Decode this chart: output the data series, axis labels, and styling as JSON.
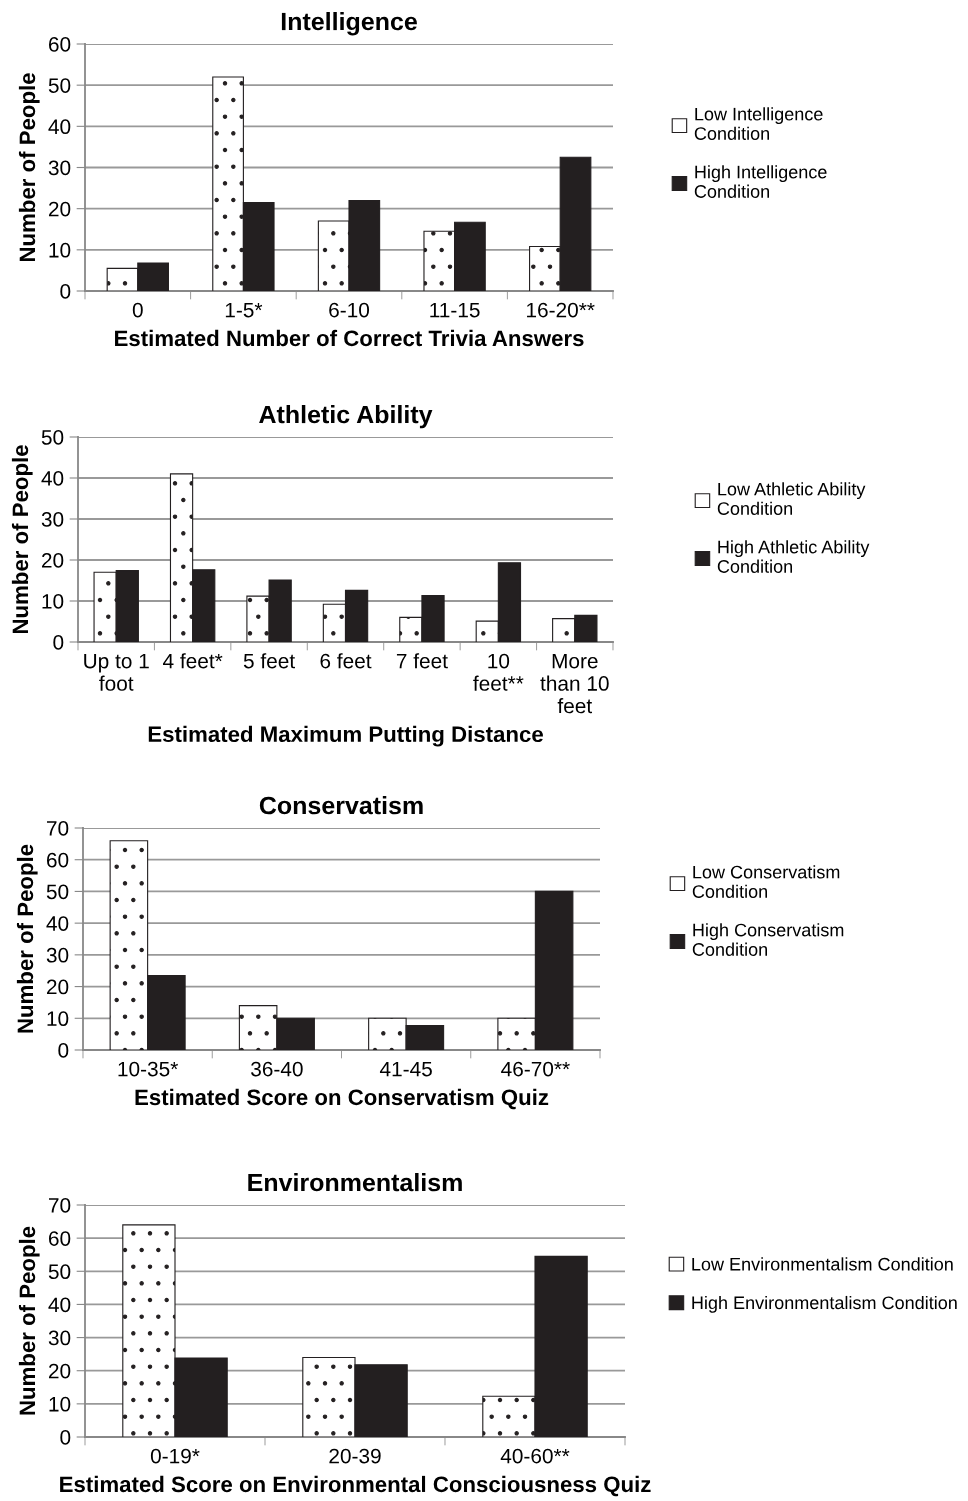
{
  "chart_data": [
    {
      "type": "bar",
      "title": "Intelligence",
      "xlabel": "Estimated Number of Correct Trivia Answers",
      "ylabel": "Number of People",
      "categories": [
        "0",
        "1-5*",
        "6-10",
        "11-15",
        "16-20**"
      ],
      "series": [
        {
          "name": "Low Intelligence\nCondition",
          "color": "#ffffff",
          "values": [
            5.5,
            52,
            17,
            14.5,
            10.8
          ]
        },
        {
          "name": "High Intelligence\nCondition",
          "color": "#231f20",
          "values": [
            6.8,
            21.5,
            22,
            16.7,
            32.5
          ]
        }
      ],
      "ylim": [
        0,
        60
      ],
      "yticks": [
        0,
        10,
        20,
        30,
        40,
        50,
        60
      ],
      "grid": "y",
      "legend": "right"
    },
    {
      "type": "bar",
      "title": "Athletic Ability",
      "xlabel": "Estimated Maximum Putting Distance",
      "ylabel": "Number of People",
      "categories": [
        "Up to 1\nfoot",
        "4 feet*",
        "5 feet",
        "6 feet",
        "7 feet",
        "10\nfeet**",
        "More\nthan 10\nfeet"
      ],
      "series": [
        {
          "name": "Low Athletic Ability\nCondition",
          "color": "#ffffff",
          "values": [
            17,
            41,
            11.2,
            9.2,
            6,
            5.1,
            5.7
          ]
        },
        {
          "name": "High Athletic Ability\nCondition",
          "color": "#231f20",
          "values": [
            17.4,
            17.6,
            15.1,
            12.6,
            11.3,
            19.3,
            6.5
          ]
        }
      ],
      "ylim": [
        0,
        50
      ],
      "yticks": [
        0,
        10,
        20,
        30,
        40,
        50
      ],
      "grid": "y",
      "legend": "right"
    },
    {
      "type": "bar",
      "title": "Conservatism",
      "xlabel": "Estimated Score on Conservatism Quiz",
      "ylabel": "Number of People",
      "categories": [
        "10-35*",
        "36-40",
        "41-45",
        "46-70**"
      ],
      "series": [
        {
          "name": "Low Conservatism\nCondition",
          "color": "#ffffff",
          "values": [
            66,
            14,
            10,
            10
          ]
        },
        {
          "name": "High Conservatism\nCondition",
          "color": "#231f20",
          "values": [
            23.5,
            10,
            7.7,
            50
          ]
        }
      ],
      "ylim": [
        0,
        70
      ],
      "yticks": [
        0,
        10,
        20,
        30,
        40,
        50,
        60,
        70
      ],
      "grid": "y",
      "legend": "right"
    },
    {
      "type": "bar",
      "title": "Environmentalism",
      "xlabel": "Estimated Score on Environmental Consciousness Quiz",
      "ylabel": "Number of People",
      "categories": [
        "0-19*",
        "20-39",
        "40-60**"
      ],
      "series": [
        {
          "name": "Low Environmentalism Condition",
          "color": "#ffffff",
          "values": [
            64,
            24,
            12.3
          ]
        },
        {
          "name": "High Environmentalism Condition",
          "color": "#231f20",
          "values": [
            23.8,
            21.8,
            54.5
          ]
        }
      ],
      "ylim": [
        0,
        70
      ],
      "yticks": [
        0,
        10,
        20,
        30,
        40,
        50,
        60,
        70
      ],
      "grid": "y",
      "legend": "right"
    }
  ]
}
